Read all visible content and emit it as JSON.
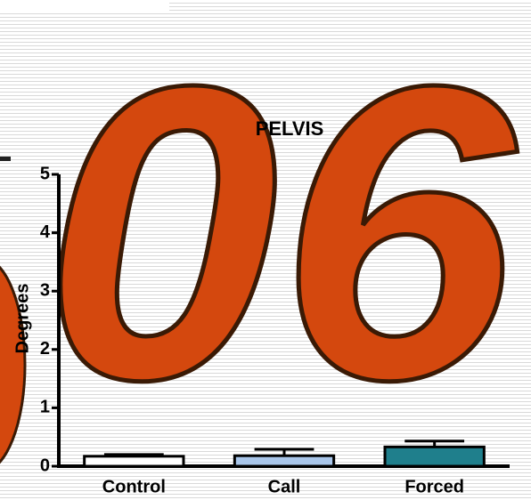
{
  "chart_data": {
    "type": "bar",
    "title": "PELVIS",
    "y_label": "Degrees",
    "watermark": "06",
    "categories": [
      "Control",
      "Call",
      "Forced"
    ],
    "values": [
      0.17,
      0.18,
      0.33
    ],
    "errors": [
      0.03,
      0.11,
      0.1
    ],
    "colors": [
      "#ffffff",
      "#a9c6ea",
      "#1f7f8c"
    ],
    "ylim": [
      0,
      5
    ],
    "yticks": [
      0,
      1,
      2,
      3,
      4,
      5
    ],
    "grid": false
  }
}
